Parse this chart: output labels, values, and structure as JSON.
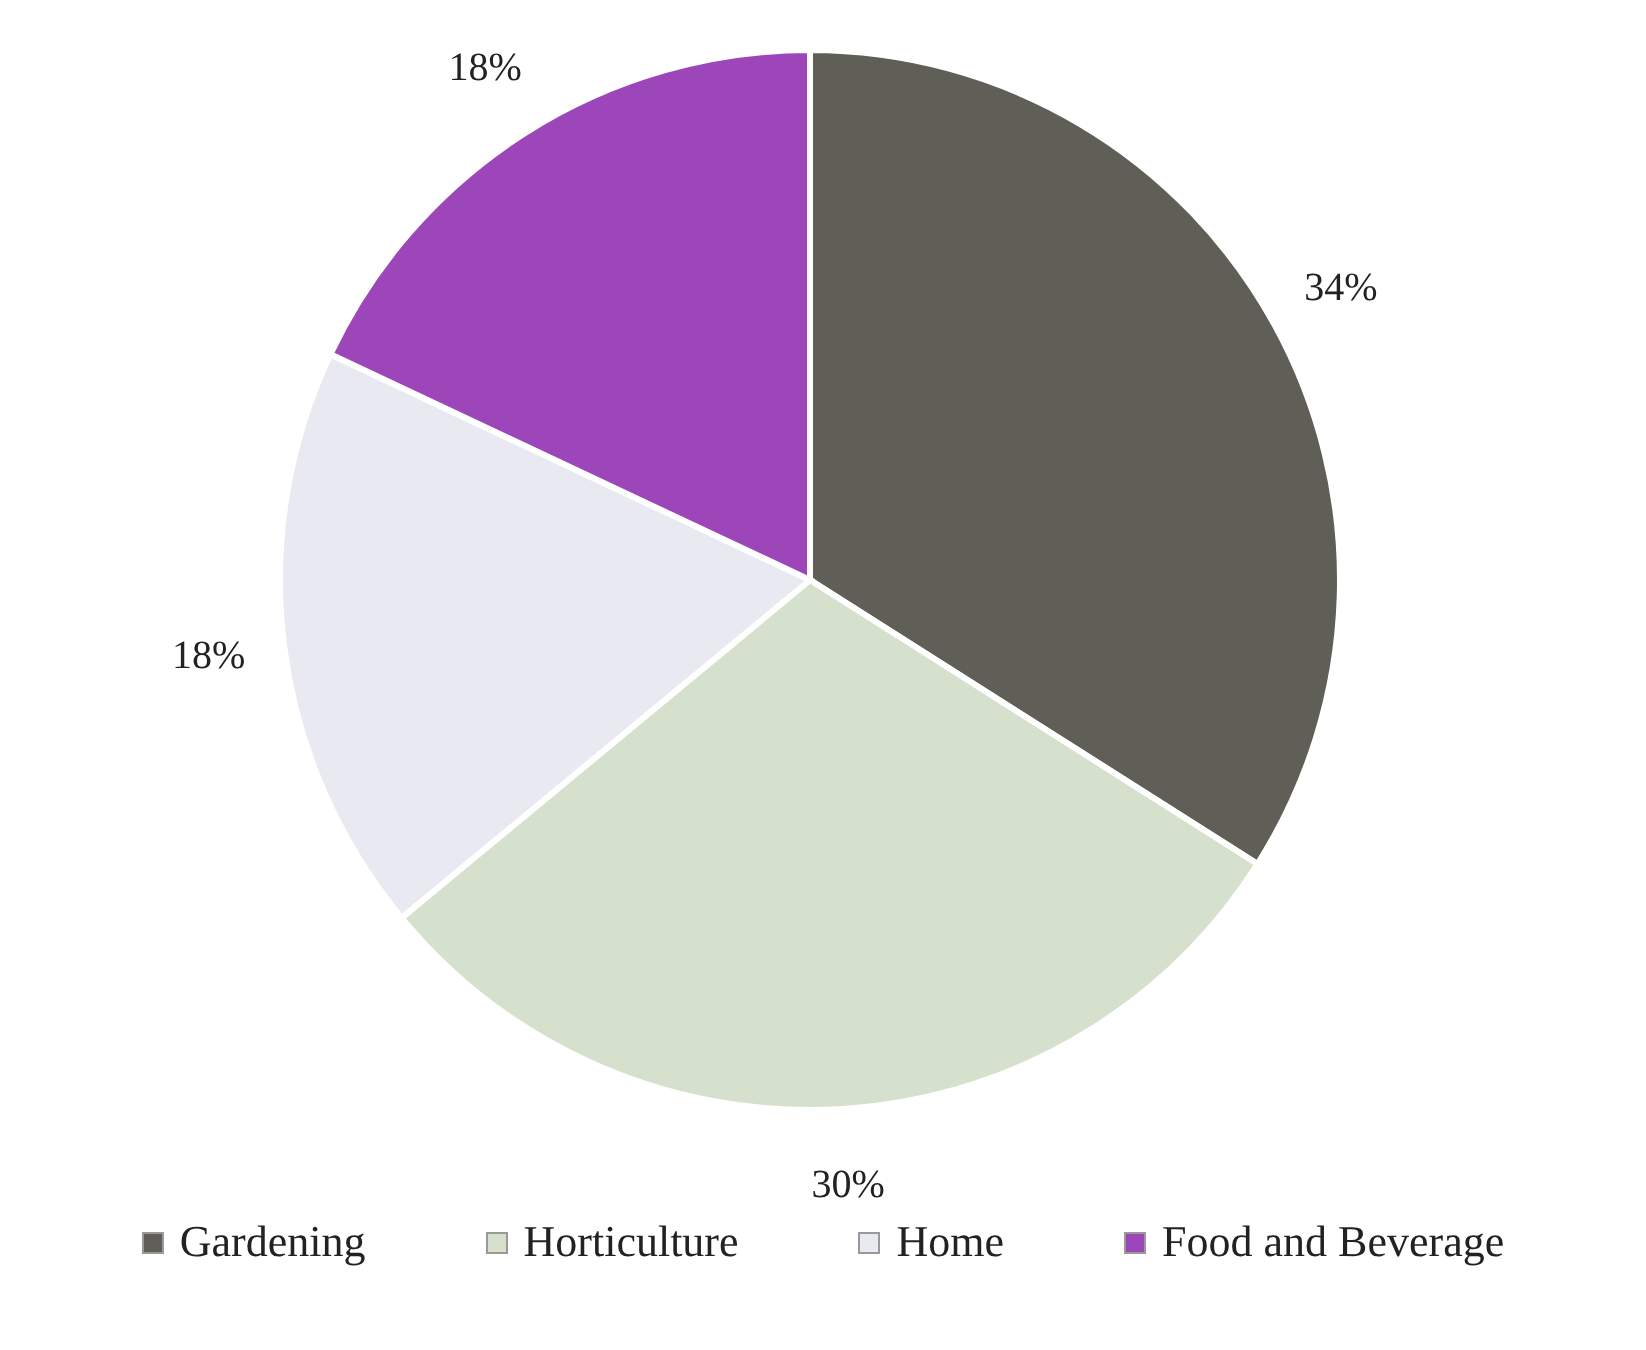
{
  "chart_data": {
    "type": "pie",
    "categories": [
      "Gardening",
      "Horticulture",
      "Home",
      "Food and Beverage"
    ],
    "values": [
      34,
      30,
      18,
      18
    ],
    "colors": [
      "#5f5f57",
      "#d6e1cd",
      "#e9e9f1",
      "#9c46b9"
    ],
    "value_labels": [
      "34%",
      "30%",
      "18%",
      "18%"
    ],
    "legend": "bottom"
  }
}
